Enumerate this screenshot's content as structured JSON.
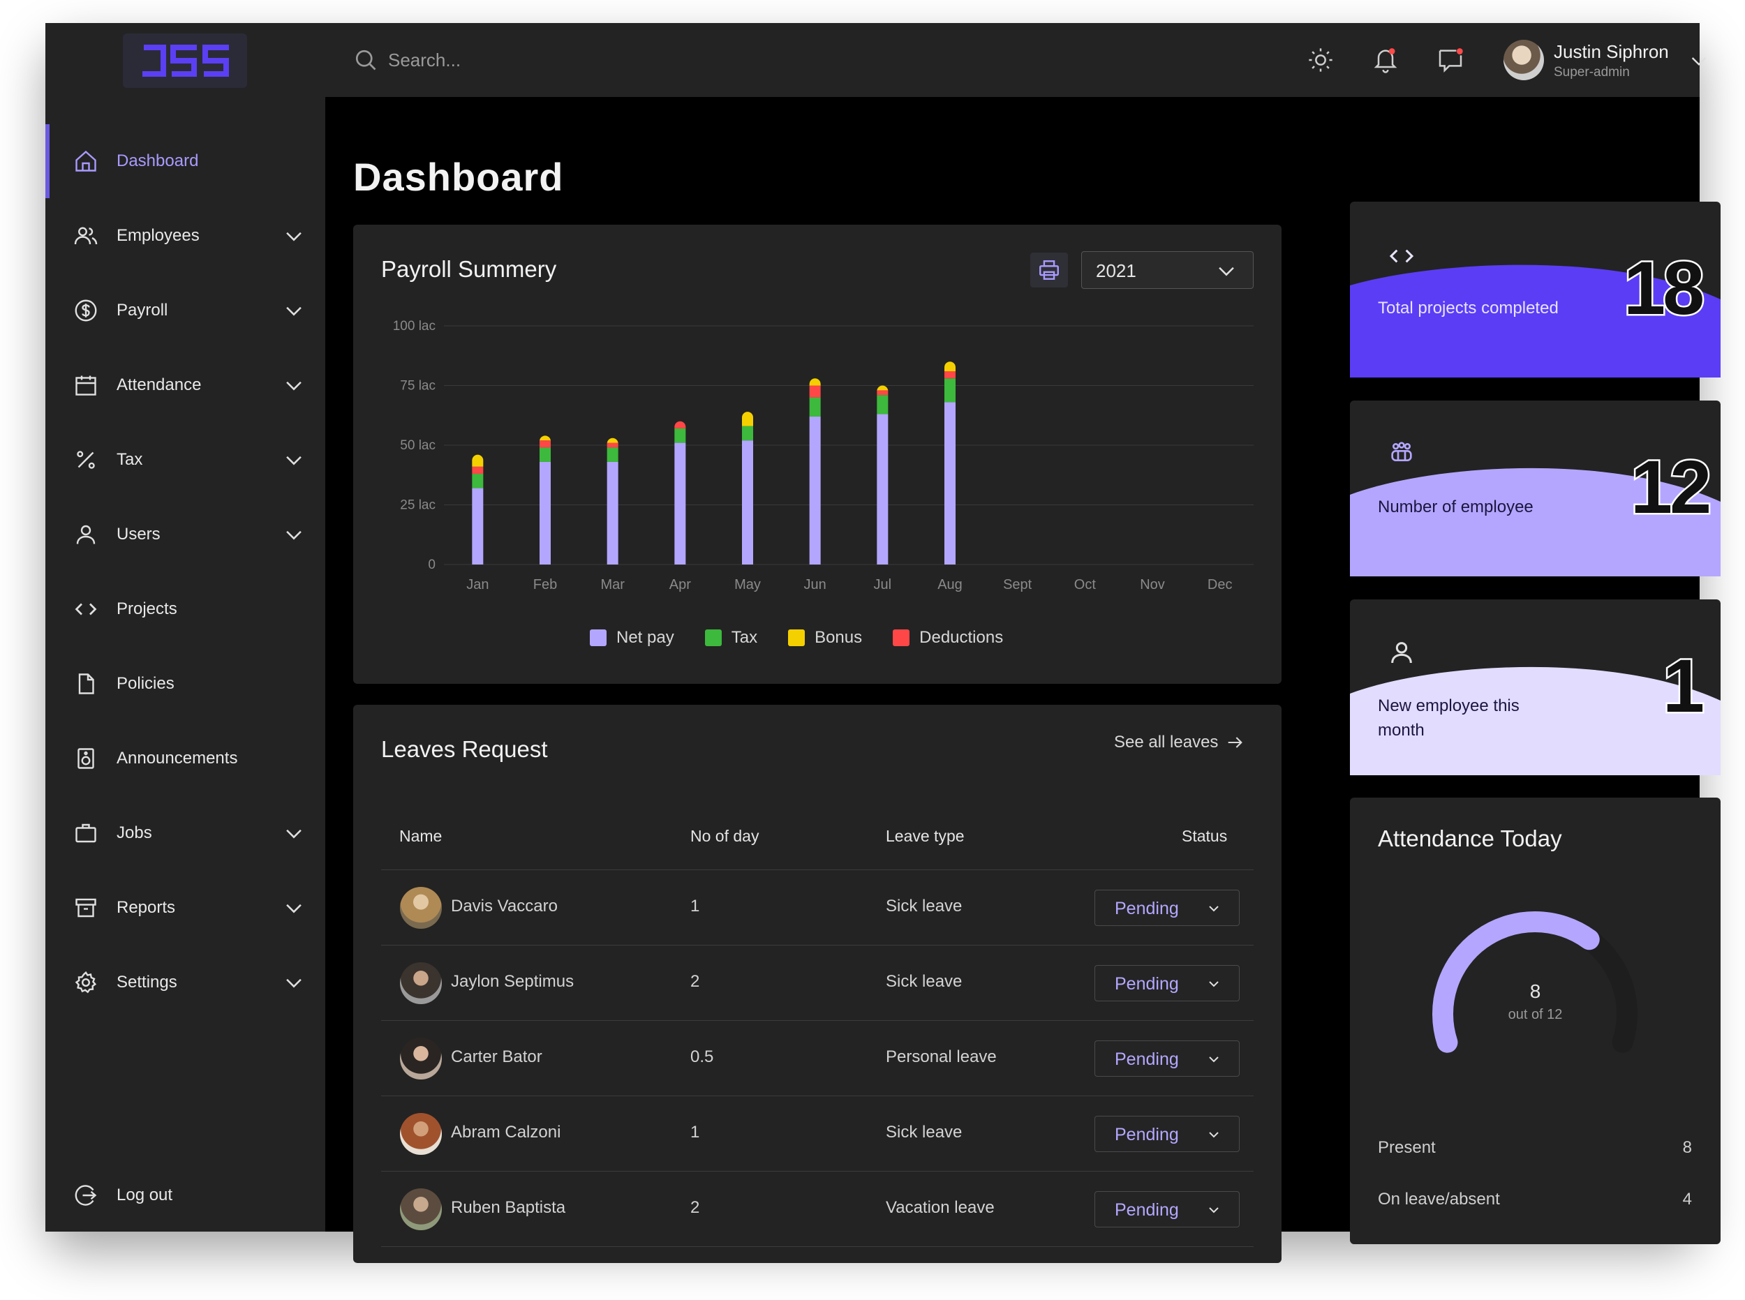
{
  "brand": {
    "logo_text": "JSS",
    "accent": "#6a5ae0"
  },
  "sidebar": {
    "items": [
      {
        "label": "Dashboard",
        "icon": "home-icon",
        "has_submenu": false,
        "active": true
      },
      {
        "label": "Employees",
        "icon": "users-icon",
        "has_submenu": true
      },
      {
        "label": "Payroll",
        "icon": "dollar-icon",
        "has_submenu": true
      },
      {
        "label": "Attendance",
        "icon": "calendar-icon",
        "has_submenu": true
      },
      {
        "label": "Tax",
        "icon": "percent-icon",
        "has_submenu": true
      },
      {
        "label": "Users",
        "icon": "user-icon",
        "has_submenu": true
      },
      {
        "label": "Projects",
        "icon": "code-icon",
        "has_submenu": false
      },
      {
        "label": "Policies",
        "icon": "file-icon",
        "has_submenu": false
      },
      {
        "label": "Announcements",
        "icon": "speaker-icon",
        "has_submenu": false
      },
      {
        "label": "Jobs",
        "icon": "briefcase-icon",
        "has_submenu": true
      },
      {
        "label": "Reports",
        "icon": "archive-icon",
        "has_submenu": true
      },
      {
        "label": "Settings",
        "icon": "gear-icon",
        "has_submenu": true
      }
    ],
    "logout_label": "Log out"
  },
  "topbar": {
    "search_placeholder": "Search...",
    "user": {
      "name": "Justin Siphron",
      "role": "Super-admin"
    }
  },
  "main": {
    "title": "Dashboard"
  },
  "payroll": {
    "title": "Payroll Summery",
    "year": "2021",
    "chart_data": {
      "type": "bar",
      "stacked": true,
      "categories": [
        "Jan",
        "Feb",
        "Mar",
        "Apr",
        "May",
        "Jun",
        "Jul",
        "Aug",
        "Sept",
        "Oct",
        "Nov",
        "Dec"
      ],
      "y_ticks": [
        "0",
        "25 lac",
        "50 lac",
        "75 lac",
        "100 lac"
      ],
      "ylim": [
        0,
        100
      ],
      "series": [
        {
          "name": "Net pay",
          "color": "#b3a6ff",
          "values": [
            32,
            43,
            43,
            51,
            52,
            62,
            63,
            68,
            0,
            0,
            0,
            0
          ]
        },
        {
          "name": "Tax",
          "color": "#3db93d",
          "values": [
            6,
            6,
            6,
            6,
            6,
            8,
            8,
            10,
            0,
            0,
            0,
            0
          ]
        },
        {
          "name": "Deductions",
          "color": "#ff4747",
          "values": [
            3,
            3,
            2,
            3,
            0,
            5,
            2,
            3,
            0,
            0,
            0,
            0
          ]
        },
        {
          "name": "Bonus",
          "color": "#f5d000",
          "values": [
            5,
            2,
            2,
            0,
            6,
            3,
            2,
            4,
            0,
            0,
            0,
            0
          ]
        }
      ],
      "legend": [
        {
          "name": "Net pay",
          "color": "#b3a6ff"
        },
        {
          "name": "Tax",
          "color": "#3db93d"
        },
        {
          "name": "Bonus",
          "color": "#f5d000"
        },
        {
          "name": "Deductions",
          "color": "#ff4747"
        }
      ],
      "grid": true,
      "legend_position": "bottom"
    }
  },
  "leaves": {
    "title": "Leaves Request",
    "see_all": "See all leaves",
    "columns": [
      "Name",
      "No of day",
      "Leave type",
      "Status"
    ],
    "rows": [
      {
        "name": "Davis Vaccaro",
        "days": "1",
        "type": "Sick leave",
        "status": "Pending",
        "avatar_color": "#b08a55"
      },
      {
        "name": "Jaylon Septimus",
        "days": "2",
        "type": "Sick leave",
        "status": "Pending",
        "avatar_color": "#6b5c52"
      },
      {
        "name": "Carter Bator",
        "days": "0.5",
        "type": "Personal leave",
        "status": "Pending",
        "avatar_color": "#8a6a5a"
      },
      {
        "name": "Abram Calzoni",
        "days": "1",
        "type": "Sick leave",
        "status": "Pending",
        "avatar_color": "#a0522d"
      },
      {
        "name": "Ruben Baptista",
        "days": "2",
        "type": "Vacation leave",
        "status": "Pending",
        "avatar_color": "#6f7a5a"
      }
    ]
  },
  "stats": [
    {
      "icon": "code-icon",
      "label": "Total projects completed",
      "value": "18",
      "wave_color": "#5b3df5",
      "text_color": "#e8e4ff"
    },
    {
      "icon": "team-icon",
      "label": "Number of employee",
      "value": "12",
      "wave_color": "#b4a6ff",
      "text_color": "#1a1640"
    },
    {
      "icon": "user-icon",
      "label": "New employee this month",
      "value": "1",
      "wave_color": "#e2dcff",
      "text_color": "#1a1640"
    }
  ],
  "attendance": {
    "title": "Attendance Today",
    "present_count": "8",
    "total_label": "out of 12",
    "fraction": 0.667,
    "rows": [
      {
        "label": "Present",
        "value": "8"
      },
      {
        "label": "On leave/absent",
        "value": "4"
      }
    ]
  }
}
